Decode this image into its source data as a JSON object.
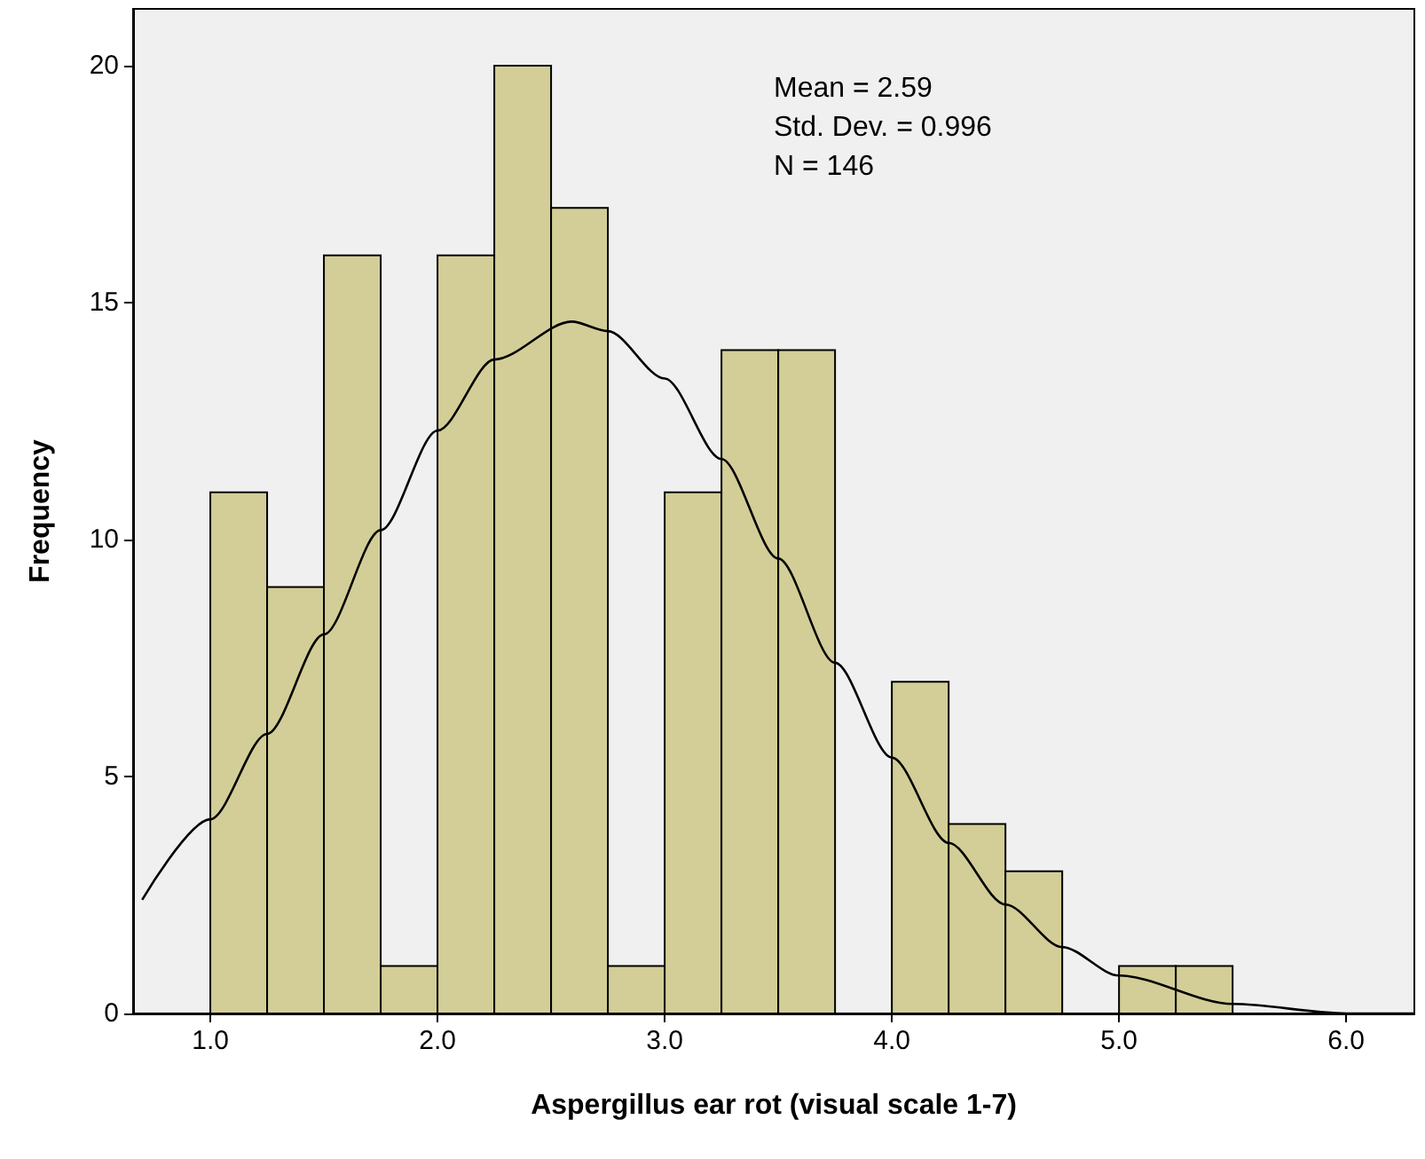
{
  "chart_data": {
    "type": "histogram",
    "xlabel": "Aspergillus ear rot (visual scale 1-7)",
    "ylabel": "Frequency",
    "bins": [
      1.0,
      1.25,
      1.5,
      1.75,
      2.0,
      2.25,
      2.5,
      2.75,
      3.0,
      3.25,
      3.5,
      3.75,
      4.0,
      4.25,
      4.5,
      4.75,
      5.0,
      5.25,
      5.5
    ],
    "values": [
      11,
      9,
      16,
      1,
      16,
      20,
      17,
      1,
      11,
      14,
      14,
      0,
      7,
      4,
      3,
      0,
      1,
      1
    ],
    "color": "#d3ce97",
    "series": [
      {
        "type": "line",
        "color": "#000000",
        "x": [
          0.7,
          1.0,
          1.25,
          1.5,
          1.75,
          2.0,
          2.25,
          2.59,
          2.75,
          3.0,
          3.25,
          3.5,
          3.75,
          4.0,
          4.25,
          4.5,
          4.75,
          5.0,
          5.5,
          6.0,
          6.3
        ],
        "values": [
          2.4,
          4.1,
          5.9,
          8.0,
          10.2,
          12.3,
          13.8,
          14.6,
          14.4,
          13.4,
          11.7,
          9.6,
          7.4,
          5.4,
          3.6,
          2.3,
          1.4,
          0.8,
          0.2,
          0.0,
          0.0
        ]
      }
    ],
    "xlim": [
      0.66,
      6.3
    ],
    "xticks": [
      {
        "value": 1,
        "label": "1.0"
      },
      {
        "value": 2,
        "label": "2.0"
      },
      {
        "value": 3,
        "label": "3.0"
      },
      {
        "value": 4,
        "label": "4.0"
      },
      {
        "value": 5,
        "label": "5.0"
      },
      {
        "value": 6,
        "label": "6.0"
      }
    ],
    "ylim": [
      0,
      21.2
    ],
    "yticks": [
      0,
      5,
      10,
      15,
      20
    ],
    "grid": false,
    "annotations": [
      "Mean = 2.59",
      "Std. Dev. = 0.996",
      "N = 146"
    ]
  }
}
